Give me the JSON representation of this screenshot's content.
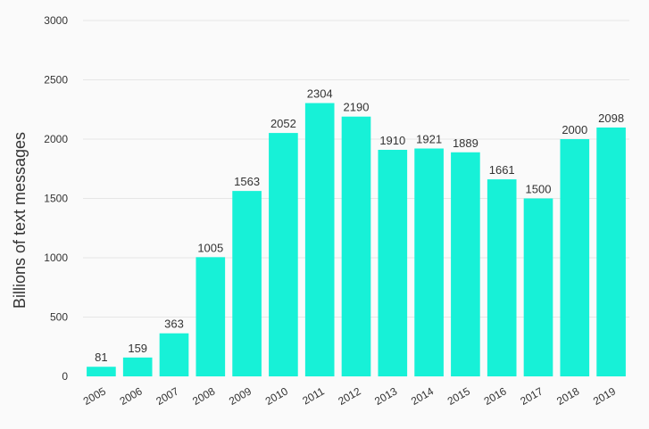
{
  "chart_data": {
    "type": "bar",
    "title": "",
    "xlabel": "",
    "ylabel": "Billions of text messages",
    "categories": [
      "2005",
      "2006",
      "2007",
      "2008",
      "2009",
      "2010",
      "2011",
      "2012",
      "2013",
      "2014",
      "2015",
      "2016",
      "2017",
      "2018",
      "2019"
    ],
    "values": [
      81,
      159,
      363,
      1005,
      1563,
      2052,
      2304,
      2190,
      1910,
      1921,
      1889,
      1661,
      1500,
      2000,
      2098
    ],
    "ylim": [
      0,
      3000
    ],
    "yticks": [
      0,
      500,
      1000,
      1500,
      2000,
      2500,
      3000
    ],
    "grid": true,
    "legend": "none",
    "data_labels": true,
    "x_tick_rotation": "slanted",
    "colors": {
      "bar": "#17f1d7",
      "text": "#333333",
      "grid": "#e6e6e6",
      "background": "#fafafa"
    }
  }
}
